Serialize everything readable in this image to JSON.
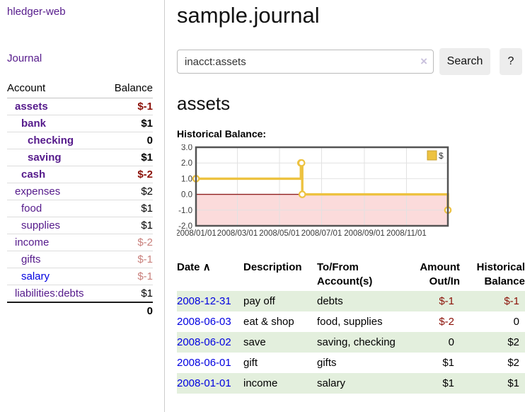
{
  "colors": {
    "link_purple": "#551a8b",
    "link_blue": "#0000e0",
    "negative_dark": "#8b1007",
    "negative_light": "#c9807c",
    "row_green": "#e3efdd",
    "chart_gold": "#edc240",
    "chart_negative_band": "#fbdbdb",
    "chart_zero_line": "#8f1f1f",
    "chart_border": "#545454",
    "grid_gray": "#e2e2e2"
  },
  "sidebar": {
    "brand": "hledger-web",
    "journal_link": "Journal",
    "account_col": "Account",
    "balance_col": "Balance",
    "accounts": [
      {
        "name": "assets",
        "indent": 0,
        "bold": true,
        "balance": "$-1",
        "negative": true,
        "unvisited": false
      },
      {
        "name": "bank",
        "indent": 1,
        "bold": true,
        "balance": "$1",
        "negative": false,
        "unvisited": false
      },
      {
        "name": "checking",
        "indent": 2,
        "bold": true,
        "balance": "0",
        "negative": false,
        "unvisited": false
      },
      {
        "name": "saving",
        "indent": 2,
        "bold": true,
        "balance": "$1",
        "negative": false,
        "unvisited": false
      },
      {
        "name": "cash",
        "indent": 1,
        "bold": true,
        "balance": "$-2",
        "negative": true,
        "unvisited": false
      },
      {
        "name": "expenses",
        "indent": 0,
        "bold": false,
        "balance": "$2",
        "negative": false,
        "unvisited": false
      },
      {
        "name": "food",
        "indent": 1,
        "bold": false,
        "balance": "$1",
        "negative": false,
        "unvisited": false
      },
      {
        "name": "supplies",
        "indent": 1,
        "bold": false,
        "balance": "$1",
        "negative": false,
        "unvisited": false
      },
      {
        "name": "income",
        "indent": 0,
        "bold": false,
        "balance": "$-2",
        "negative": true,
        "unvisited": false
      },
      {
        "name": "gifts",
        "indent": 1,
        "bold": false,
        "balance": "$-1",
        "negative": true,
        "unvisited": false
      },
      {
        "name": "salary",
        "indent": 1,
        "bold": false,
        "balance": "$-1",
        "negative": true,
        "unvisited": true
      },
      {
        "name": "liabilities:debts",
        "indent": 0,
        "bold": false,
        "balance": "$1",
        "negative": false,
        "unvisited": false
      }
    ],
    "total": "0"
  },
  "main": {
    "title": "sample.journal",
    "search": {
      "value": "inacct:assets",
      "clear_label": "×",
      "search_button": "Search",
      "help_button": "?"
    },
    "account_heading": "assets",
    "chart_heading": "Historical Balance:"
  },
  "chart_data": {
    "type": "line",
    "title": "Historical Balance:",
    "step": true,
    "legend": [
      {
        "label": "$",
        "color": "#edc240"
      }
    ],
    "legend_position": "top-right",
    "x_start": "2008-01-01",
    "x_end": "2008-12-31",
    "x_ticks": [
      "2008/01/01",
      "2008/03/01",
      "2008/05/01",
      "2008/07/01",
      "2008/09/01",
      "2008/11/01"
    ],
    "y_ticks": [
      "3.0",
      "2.0",
      "1.0",
      "0.0",
      "-1.0",
      "-2.0"
    ],
    "ylim": [
      -2,
      3
    ],
    "grid": true,
    "negative_region_shaded": true,
    "series": [
      {
        "name": "$",
        "points": [
          [
            "2008-01-01",
            1
          ],
          [
            "2008-06-01",
            2
          ],
          [
            "2008-06-02",
            2
          ],
          [
            "2008-06-03",
            0
          ],
          [
            "2008-12-31",
            -1
          ]
        ]
      }
    ]
  },
  "register": {
    "headers": [
      {
        "label": "Date",
        "sort": "∧"
      },
      {
        "label": "Description"
      },
      {
        "label": "To/From Account(s)"
      },
      {
        "label": "Amount Out/In"
      },
      {
        "label": "Historical Balance"
      }
    ],
    "rows": [
      {
        "date": "2008-12-31",
        "description": "pay off",
        "accounts": "debts",
        "amount": "$-1",
        "amount_negative": true,
        "balance": "$-1",
        "balance_negative": true
      },
      {
        "date": "2008-06-03",
        "description": "eat & shop",
        "accounts": "food, supplies",
        "amount": "$-2",
        "amount_negative": true,
        "balance": "0",
        "balance_negative": false
      },
      {
        "date": "2008-06-02",
        "description": "save",
        "accounts": "saving, checking",
        "amount": "0",
        "amount_negative": false,
        "balance": "$2",
        "balance_negative": false
      },
      {
        "date": "2008-06-01",
        "description": "gift",
        "accounts": "gifts",
        "amount": "$1",
        "amount_negative": false,
        "balance": "$2",
        "balance_negative": false
      },
      {
        "date": "2008-01-01",
        "description": "income",
        "accounts": "salary",
        "amount": "$1",
        "amount_negative": false,
        "balance": "$1",
        "balance_negative": false
      }
    ]
  }
}
